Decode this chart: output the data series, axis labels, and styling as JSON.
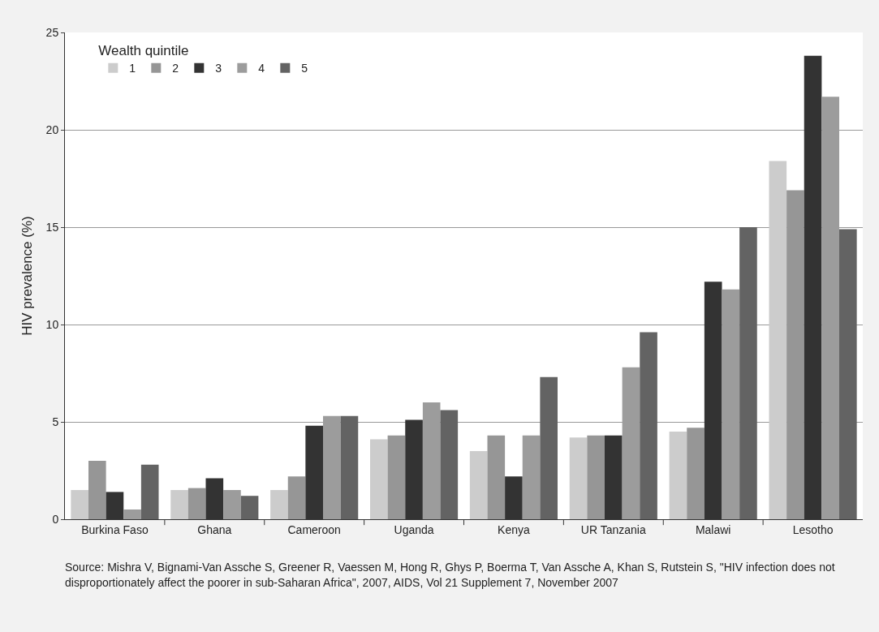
{
  "chart_data": {
    "type": "bar",
    "ylabel": "HIV prevalence (%)",
    "legend_title": "Wealth quintile",
    "categories": [
      "Burkina Faso",
      "Ghana",
      "Cameroon",
      "Uganda",
      "Kenya",
      "UR Tanzania",
      "Malawi",
      "Lesotho"
    ],
    "series": [
      {
        "name": "1",
        "color": "#cccccc",
        "values": [
          1.5,
          1.5,
          1.5,
          4.1,
          3.5,
          4.2,
          4.5,
          18.4
        ]
      },
      {
        "name": "2",
        "color": "#969696",
        "values": [
          3.0,
          1.6,
          2.2,
          4.3,
          4.3,
          4.3,
          4.7,
          16.9
        ]
      },
      {
        "name": "3",
        "color": "#333333",
        "values": [
          1.4,
          2.1,
          4.8,
          5.1,
          2.2,
          4.3,
          12.2,
          23.8
        ]
      },
      {
        "name": "4",
        "color": "#9c9c9c",
        "values": [
          0.5,
          1.5,
          5.3,
          6.0,
          4.3,
          7.8,
          11.8,
          21.7
        ]
      },
      {
        "name": "5",
        "color": "#636363",
        "values": [
          2.8,
          1.2,
          5.3,
          5.6,
          7.3,
          9.6,
          15.0,
          14.9
        ]
      }
    ],
    "ylim": [
      0,
      25
    ],
    "yticks": [
      0,
      5,
      10,
      15,
      20,
      25
    ],
    "grid": "y",
    "legend": "top left",
    "annotations": [
      "Source:  Mishra V, Bignami-Van Assche S, Greener R, Vaessen M, Hong R, Ghys P, Boerma T, Van Assche A, Khan S, Rutstein S, \"HIV infection does not disproportionately affect the poorer in sub-Saharan Africa\", 2007, AIDS, Vol 21 Supplement 7, November 2007"
    ]
  }
}
